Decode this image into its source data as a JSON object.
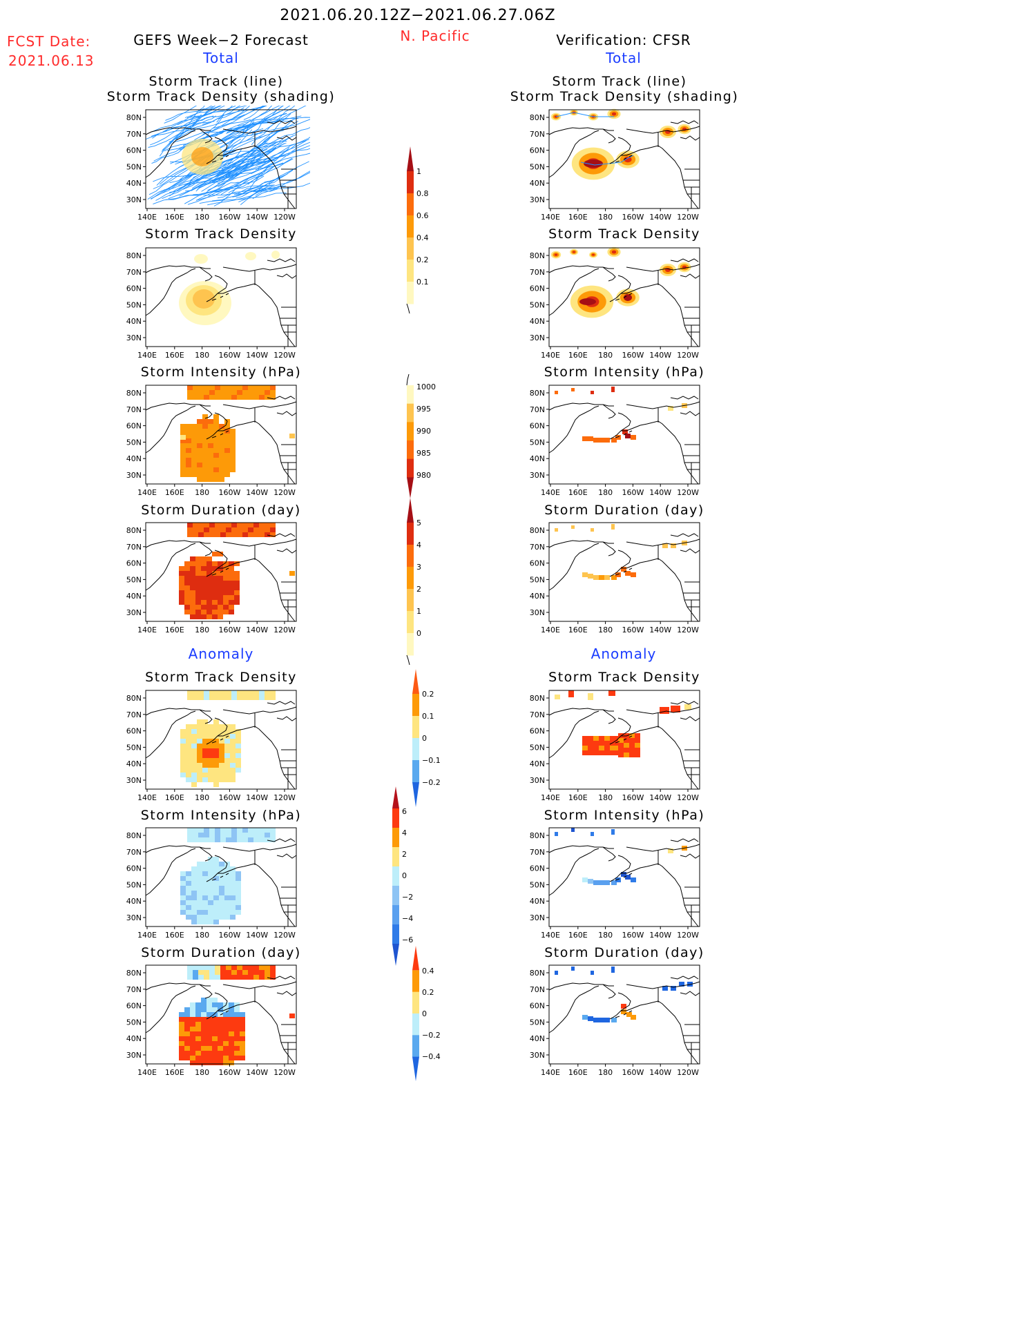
{
  "header": {
    "date_range": "2021.06.20.12Z−2021.06.27.06Z",
    "region": "N. Pacific",
    "fcst_label": "FCST Date:",
    "fcst_date": "2021.06.13",
    "left_title": "GEFS Week−2 Forecast",
    "right_title": "Verification: CFSR",
    "total_label": "Total",
    "anomaly_label": "Anomaly"
  },
  "panel_titles": {
    "track_line": "Storm Track (line)",
    "track_shading": "Storm Track Density (shading)",
    "density": "Storm Track Density",
    "intensity": "Storm Intensity (hPa)",
    "duration": "Storm Duration (day)"
  },
  "axes": {
    "lat_labels": [
      "80N",
      "70N",
      "60N",
      "50N",
      "40N",
      "30N"
    ],
    "lon_labels": [
      "140E",
      "160E",
      "180",
      "160W",
      "140W",
      "120W"
    ]
  },
  "colorbars": {
    "density_total": {
      "labels": [
        "1",
        "0.8",
        "0.6",
        "0.4",
        "0.2",
        "0.1"
      ],
      "colors": [
        "#a50f15",
        "#de2d10",
        "#fc6c0c",
        "#fd9a08",
        "#fec44f",
        "#fee580",
        "#fff8c0"
      ]
    },
    "intensity_total": {
      "labels": [
        "1000",
        "995",
        "990",
        "985",
        "980"
      ],
      "colors": [
        "#fff8c0",
        "#fec44f",
        "#fd9a08",
        "#fc6c0c",
        "#de2d10",
        "#a50f15"
      ]
    },
    "duration_total": {
      "labels": [
        "5",
        "4",
        "3",
        "2",
        "1",
        "0"
      ],
      "colors": [
        "#a50f15",
        "#de2d10",
        "#fc6c0c",
        "#fd9a08",
        "#fec44f",
        "#fee580",
        "#fff8c0"
      ]
    },
    "density_anom": {
      "labels": [
        "0.2",
        "0.1",
        "0",
        "−0.1",
        "−0.2"
      ],
      "colors": [
        "#fd5a14",
        "#fd9a08",
        "#fee580",
        "#bdeefa",
        "#5aa9ef",
        "#1f66e0"
      ]
    },
    "intensity_anom": {
      "labels": [
        "6",
        "4",
        "2",
        "0",
        "−2",
        "−4",
        "−6"
      ],
      "colors": [
        "#b5121b",
        "#fd3a10",
        "#fd9a08",
        "#fee580",
        "#bdeefa",
        "#8ec4f4",
        "#5aa0ef",
        "#2f7be8",
        "#1f55d0"
      ]
    },
    "duration_anom": {
      "labels": [
        "0.4",
        "0.2",
        "0",
        "−0.2",
        "−0.4"
      ],
      "colors": [
        "#fd3a10",
        "#fd9a08",
        "#fee580",
        "#bdeefa",
        "#5aa9ef",
        "#1f66e0"
      ]
    }
  }
}
